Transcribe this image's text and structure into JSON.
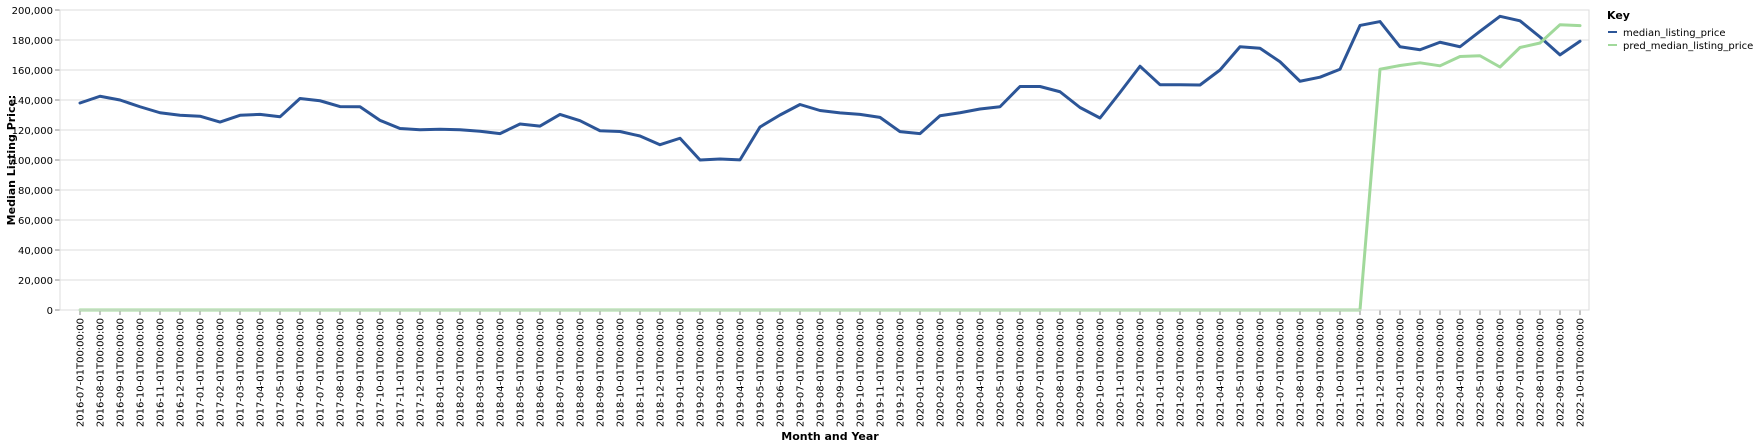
{
  "chart_data": {
    "type": "line",
    "title": "",
    "xlabel": "Month and Year",
    "ylabel": "Median Listing Price:",
    "ylim": [
      0,
      200000
    ],
    "yticks": [
      "0",
      "20,000",
      "40,000",
      "60,000",
      "80,000",
      "100,000",
      "120,000",
      "140,000",
      "160,000",
      "180,000",
      "200,000"
    ],
    "grid": true,
    "legend": {
      "title": "Key",
      "placement": "top-right"
    },
    "colors": {
      "median_listing_price": "#2c5597",
      "pred_median_listing_price": "#a1d99b"
    },
    "x": [
      "2016-07-01T00:00:00",
      "2016-08-01T00:00:00",
      "2016-09-01T00:00:00",
      "2016-10-01T00:00:00",
      "2016-11-01T00:00:00",
      "2016-12-01T00:00:00",
      "2017-01-01T00:00:00",
      "2017-02-01T00:00:00",
      "2017-03-01T00:00:00",
      "2017-04-01T00:00:00",
      "2017-05-01T00:00:00",
      "2017-06-01T00:00:00",
      "2017-07-01T00:00:00",
      "2017-08-01T00:00:00",
      "2017-09-01T00:00:00",
      "2017-10-01T00:00:00",
      "2017-11-01T00:00:00",
      "2017-12-01T00:00:00",
      "2018-01-01T00:00:00",
      "2018-02-01T00:00:00",
      "2018-03-01T00:00:00",
      "2018-04-01T00:00:00",
      "2018-05-01T00:00:00",
      "2018-06-01T00:00:00",
      "2018-07-01T00:00:00",
      "2018-08-01T00:00:00",
      "2018-09-01T00:00:00",
      "2018-10-01T00:00:00",
      "2018-11-01T00:00:00",
      "2018-12-01T00:00:00",
      "2019-01-01T00:00:00",
      "2019-02-01T00:00:00",
      "2019-03-01T00:00:00",
      "2019-04-01T00:00:00",
      "2019-05-01T00:00:00",
      "2019-06-01T00:00:00",
      "2019-07-01T00:00:00",
      "2019-08-01T00:00:00",
      "2019-09-01T00:00:00",
      "2019-10-01T00:00:00",
      "2019-11-01T00:00:00",
      "2019-12-01T00:00:00",
      "2020-01-01T00:00:00",
      "2020-02-01T00:00:00",
      "2020-03-01T00:00:00",
      "2020-04-01T00:00:00",
      "2020-05-01T00:00:00",
      "2020-06-01T00:00:00",
      "2020-07-01T00:00:00",
      "2020-08-01T00:00:00",
      "2020-09-01T00:00:00",
      "2020-10-01T00:00:00",
      "2020-11-01T00:00:00",
      "2020-12-01T00:00:00",
      "2021-01-01T00:00:00",
      "2021-02-01T00:00:00",
      "2021-03-01T00:00:00",
      "2021-04-01T00:00:00",
      "2021-05-01T00:00:00",
      "2021-06-01T00:00:00",
      "2021-07-01T00:00:00",
      "2021-08-01T00:00:00",
      "2021-09-01T00:00:00",
      "2021-10-01T00:00:00",
      "2021-11-01T00:00:00",
      "2021-12-01T00:00:00",
      "2022-01-01T00:00:00",
      "2022-02-01T00:00:00",
      "2022-03-01T00:00:00",
      "2022-04-01T00:00:00",
      "2022-05-01T00:00:00",
      "2022-06-01T00:00:00",
      "2022-07-01T00:00:00",
      "2022-08-01T00:00:00",
      "2022-09-01T00:00:00",
      "2022-10-01T00:00:00"
    ],
    "series": [
      {
        "name": "median_listing_price",
        "values": [
          138000,
          142500,
          140000,
          135500,
          131500,
          129800,
          129200,
          125300,
          129800,
          130400,
          128800,
          141000,
          139500,
          135600,
          135500,
          126400,
          121000,
          120200,
          120500,
          120200,
          119200,
          117600,
          124000,
          122600,
          130400,
          126200,
          119500,
          119000,
          116000,
          110200,
          114500,
          100000,
          100700,
          100100,
          122000,
          130000,
          137000,
          133000,
          131400,
          130400,
          128400,
          118900,
          117600,
          129500,
          131500,
          134000,
          135500,
          149000,
          149000,
          145500,
          135000,
          128000,
          145000,
          162500,
          150200,
          150200,
          150000,
          160000,
          175500,
          174500,
          165500,
          152500,
          155200,
          160500,
          189700,
          192300,
          175500,
          173500,
          178500,
          175500,
          185800,
          195800,
          192800,
          182000,
          170100,
          179200
        ]
      },
      {
        "name": "pred_median_listing_price",
        "values": [
          0,
          0,
          0,
          0,
          0,
          0,
          0,
          0,
          0,
          0,
          0,
          0,
          0,
          0,
          0,
          0,
          0,
          0,
          0,
          0,
          0,
          0,
          0,
          0,
          0,
          0,
          0,
          0,
          0,
          0,
          0,
          0,
          0,
          0,
          0,
          0,
          0,
          0,
          0,
          0,
          0,
          0,
          0,
          0,
          0,
          0,
          0,
          0,
          0,
          0,
          0,
          0,
          0,
          0,
          0,
          0,
          0,
          0,
          0,
          0,
          0,
          0,
          0,
          0,
          0,
          160500,
          163000,
          164800,
          162800,
          169000,
          169500,
          162000,
          175000,
          178000,
          190200,
          189600
        ]
      }
    ]
  }
}
